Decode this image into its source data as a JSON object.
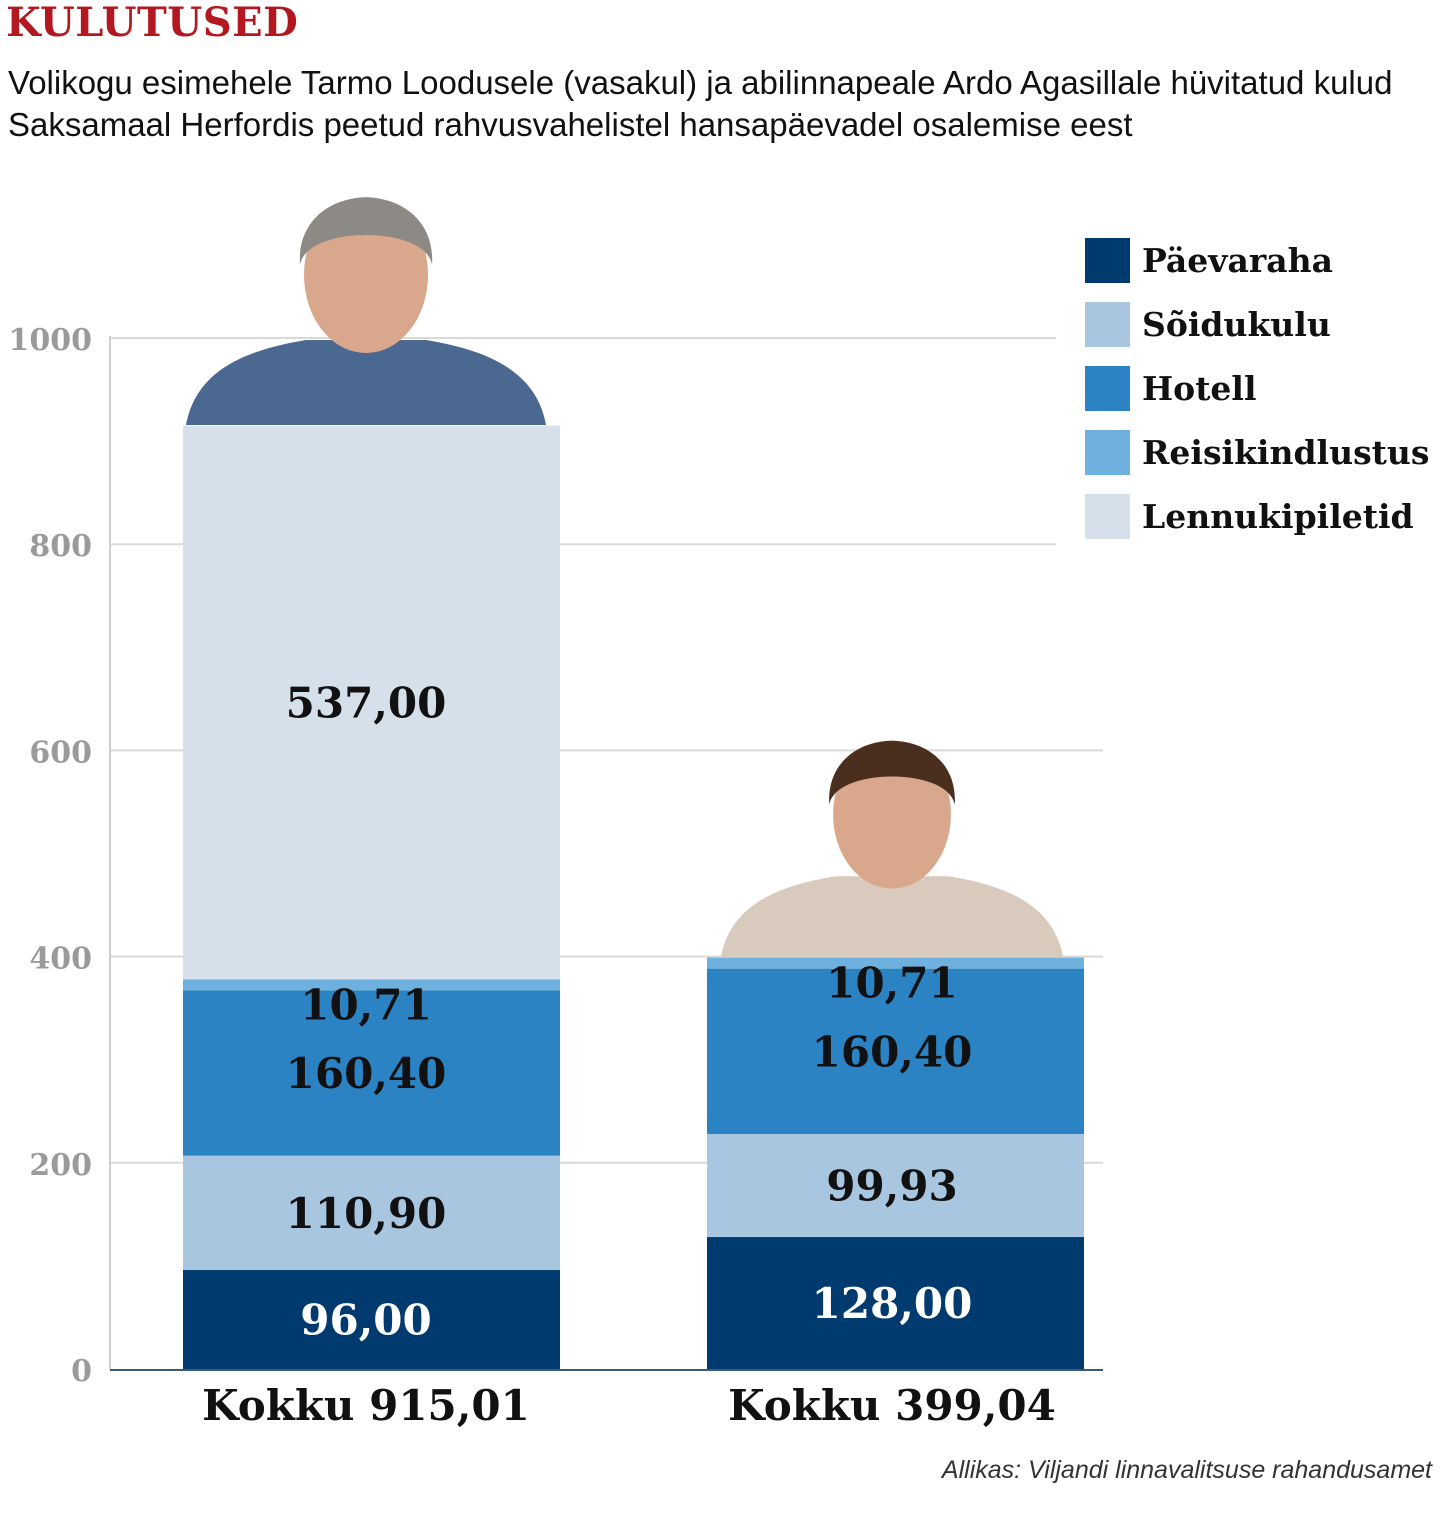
{
  "header": {
    "kicker": "KULUTUSED",
    "subtitle": "Volikogu esimehele Tarmo Loodusele (vasakul) ja abilinnapeale Ardo Agasillale hüvitatud kulud Saksamaal Herfordis peetud rahvusvahelistel hansapäevadel osalemise eest"
  },
  "chart_data": {
    "type": "bar",
    "stacked": true,
    "title": "KULUTUSED",
    "xlabel": "",
    "ylabel": "",
    "ylim": [
      0,
      1000
    ],
    "yticks": [
      "0",
      "200",
      "400",
      "600",
      "800",
      "1000"
    ],
    "grid": true,
    "legend_position": "top-right",
    "categories": [
      "Tarmo Loodus",
      "Ardo Agasild"
    ],
    "category_labels": [
      "Kokku 915,01",
      "Kokku 399,04"
    ],
    "series": [
      {
        "name": "Päevaraha",
        "color": "#003a6e",
        "values": [
          96.0,
          128.0
        ],
        "labels": [
          "96,00",
          "128,00"
        ]
      },
      {
        "name": "Sõidukulu",
        "color": "#a8c6e0",
        "values": [
          110.9,
          99.93
        ],
        "labels": [
          "110,90",
          "99,93"
        ]
      },
      {
        "name": "Hotell",
        "color": "#2b83c3",
        "values": [
          160.4,
          160.4
        ],
        "labels": [
          "160,40",
          "160,40"
        ]
      },
      {
        "name": "Reisikindlustus",
        "color": "#6fb1de",
        "values": [
          10.71,
          10.71
        ],
        "labels": [
          "10,71",
          "10,71"
        ]
      },
      {
        "name": "Lennukipiletid",
        "color": "#d6e0ea",
        "values": [
          537.0,
          0
        ],
        "labels": [
          "537,00",
          ""
        ]
      }
    ],
    "label_colors": [
      "#ffffff",
      "#111111",
      "#111111",
      "#111111",
      "#111111"
    ]
  },
  "legend": {
    "items": [
      {
        "label": "Päevaraha",
        "color": "#003a6e"
      },
      {
        "label": "Sõidukulu",
        "color": "#a8c6e0"
      },
      {
        "label": "Hotell",
        "color": "#2b83c3"
      },
      {
        "label": "Reisikindlustus",
        "color": "#6fb1de"
      },
      {
        "label": "Lennukipiletid",
        "color": "#d6e0ea"
      }
    ]
  },
  "portraits": {
    "left_icon": "portrait-photo-icon",
    "right_icon": "portrait-photo-icon"
  },
  "footer": {
    "source": "Allikas: Viljandi linnavalitsuse rahandusamet"
  }
}
